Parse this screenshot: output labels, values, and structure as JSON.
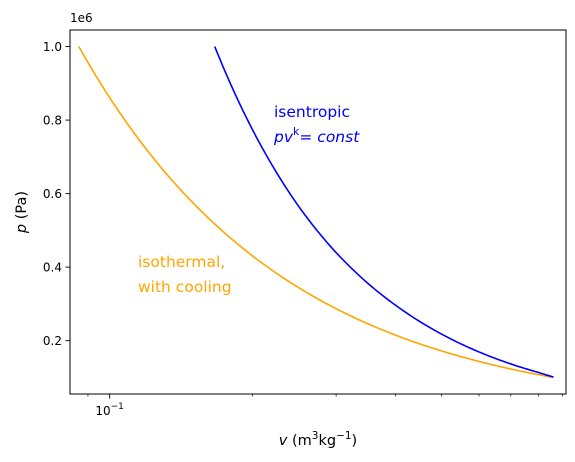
{
  "chart_data": {
    "type": "line",
    "title": "",
    "xlabel": {
      "var": "v",
      "unit_open": " (m",
      "sup1": "3",
      "mid": "kg",
      "sup2": "−1",
      "unit_close": ")"
    },
    "ylabel": {
      "var": "p",
      "unit": " (Pa)"
    },
    "xscale": "log",
    "xlim": [
      0.0825,
      0.915
    ],
    "ylim": [
      55000,
      1045000
    ],
    "y_offset_text": "1e6",
    "x_major_ticks": [
      {
        "value": 0.1,
        "base": "10",
        "exp": "−1"
      }
    ],
    "x_minor_ticks": [
      0.09,
      0.2,
      0.3,
      0.4,
      0.5,
      0.6,
      0.7,
      0.8,
      0.9
    ],
    "y_ticks": [
      {
        "value": 200000,
        "label": "0.2"
      },
      {
        "value": 400000,
        "label": "0.4"
      },
      {
        "value": 600000,
        "label": "0.6"
      },
      {
        "value": 800000,
        "label": "0.8"
      },
      {
        "value": 1000000,
        "label": "1.0"
      }
    ],
    "grid": false,
    "series": [
      {
        "key": "isothermal",
        "color": "#ffa500",
        "x": [
          0.0861,
          0.1,
          0.12,
          0.15,
          0.2,
          0.25,
          0.3,
          0.4,
          0.5,
          0.6,
          0.7,
          0.8,
          0.861
        ],
        "y": [
          1000000,
          861000,
          717500,
          574000,
          430500,
          344400,
          287000,
          215250,
          172200,
          143500,
          123000,
          107625,
          100000
        ]
      },
      {
        "key": "isentropic",
        "color": "#0000ff",
        "x": [
          0.1665,
          0.2,
          0.25,
          0.3,
          0.35,
          0.4,
          0.5,
          0.6,
          0.7,
          0.8,
          0.861
        ],
        "y": [
          1000000,
          773700,
          565900,
          439500,
          355900,
          296700,
          218100,
          169400,
          136800,
          113700,
          101100
        ]
      }
    ],
    "annotations": [
      {
        "key": "isentropic",
        "lines": [
          "isentropic"
        ],
        "formula": {
          "base": "pv",
          "sup": "k",
          "rest": "= const"
        },
        "color": "#0000ff"
      },
      {
        "key": "isothermal",
        "lines": [
          "isothermal,",
          "with cooling"
        ],
        "color": "#ffa500"
      }
    ]
  }
}
